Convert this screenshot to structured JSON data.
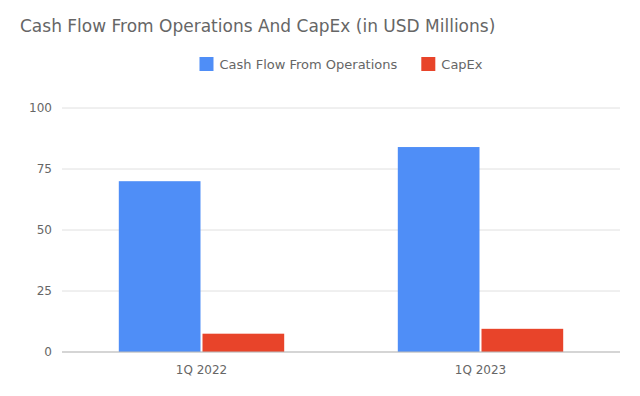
{
  "chart_data": {
    "type": "bar",
    "title": "Cash Flow From Operations And CapEx (in USD Millions)",
    "categories": [
      "1Q 2022",
      "1Q 2023"
    ],
    "series": [
      {
        "name": "Cash Flow From Operations",
        "color": "#4F8EF7",
        "values": [
          70,
          84
        ]
      },
      {
        "name": "CapEx",
        "color": "#E8442A",
        "values": [
          7.5,
          9.5
        ]
      }
    ],
    "ylim": [
      0,
      100
    ],
    "yticks": [
      0,
      25,
      50,
      75,
      100
    ],
    "grid": true,
    "legend": "top"
  }
}
